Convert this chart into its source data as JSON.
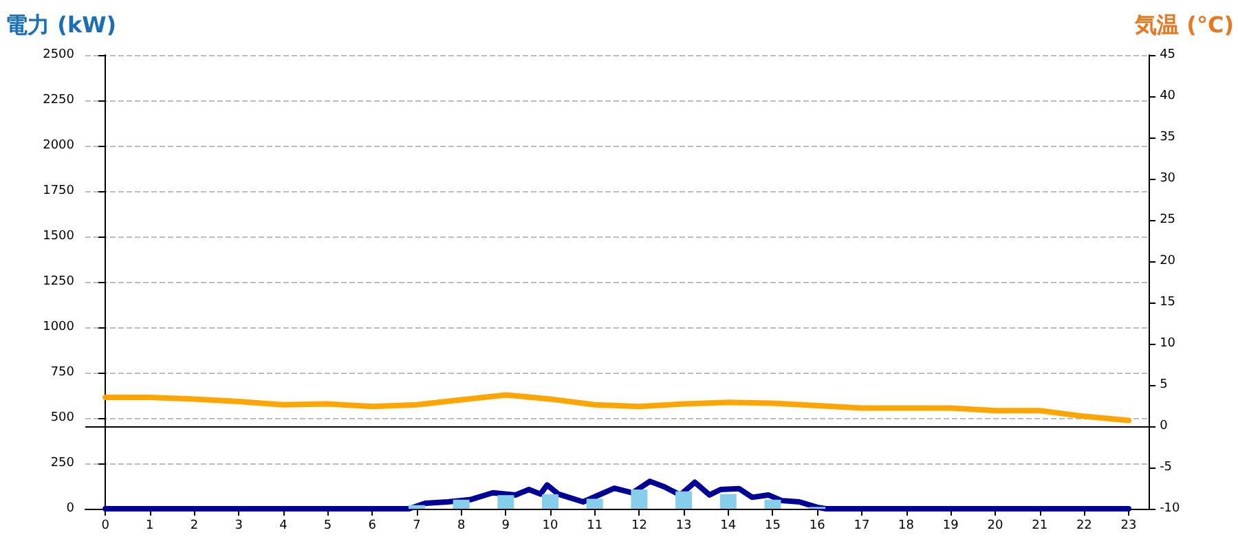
{
  "chart_data": {
    "type": "bar",
    "ylabel": "電力 (kW)",
    "y2label": "気温 (°C)",
    "xlim": [
      -0.45,
      23.45
    ],
    "xticks": [
      0,
      1,
      2,
      3,
      4,
      5,
      6,
      7,
      8,
      9,
      10,
      11,
      12,
      13,
      14,
      15,
      16,
      17,
      18,
      19,
      20,
      21,
      22,
      23
    ],
    "ylim": [
      0,
      2500
    ],
    "yticks": [
      0,
      250,
      500,
      750,
      1000,
      1250,
      1500,
      1750,
      2000,
      2250,
      2500
    ],
    "y2lim": [
      -10,
      45
    ],
    "y2ticks": [
      -10,
      -5,
      0,
      5,
      10,
      15,
      20,
      25,
      30,
      35,
      40,
      45
    ],
    "grid": "y",
    "ref_lines": [
      {
        "axis": "y2",
        "value": 0,
        "color": "#000000",
        "line_style": "solid"
      }
    ],
    "series": [
      {
        "color": "#87ceeb",
        "x": [
          0,
          1,
          2,
          3,
          4,
          5,
          6,
          7,
          8,
          9,
          10,
          11,
          12,
          13,
          14,
          15,
          16,
          17,
          18,
          19,
          20,
          21,
          22,
          23
        ],
        "values": [
          0,
          0,
          0,
          0,
          0,
          0,
          0,
          20,
          50,
          75,
          80,
          55,
          106,
          96,
          81,
          50,
          10,
          0,
          0,
          0,
          0,
          0,
          0,
          0
        ]
      },
      {
        "type": "line",
        "color": "#000099",
        "marker": "none",
        "line_style": "solid",
        "x": [
          0,
          6.83,
          7.19,
          7.7,
          8.2,
          8.71,
          9.22,
          9.52,
          9.78,
          9.93,
          10.18,
          10.74,
          11.04,
          11.44,
          11.85,
          12.24,
          12.56,
          12.92,
          13.25,
          13.58,
          13.83,
          14.24,
          14.54,
          14.9,
          15.2,
          15.6,
          16.0,
          16.2,
          23
        ],
        "values": [
          0,
          0,
          30,
          38,
          50,
          88,
          76,
          106,
          81,
          131,
          81,
          38,
          70,
          113,
          88,
          151,
          121,
          76,
          146,
          76,
          106,
          111,
          63,
          76,
          45,
          38,
          8,
          0,
          0
        ]
      },
      {
        "type": "line",
        "axis": "y2",
        "color": "#ffa500",
        "marker": "none",
        "line_style": "solid",
        "x": [
          0,
          1,
          2,
          3,
          4,
          5,
          6,
          7,
          8,
          9,
          10,
          11,
          12,
          13,
          14,
          15,
          16,
          17,
          18,
          19,
          20,
          21,
          22,
          23
        ],
        "values": [
          3.5,
          3.5,
          3.3,
          3.0,
          2.6,
          2.7,
          2.4,
          2.6,
          3.2,
          3.8,
          3.3,
          2.6,
          2.4,
          2.7,
          2.9,
          2.8,
          2.5,
          2.2,
          2.2,
          2.2,
          1.9,
          1.9,
          1.2,
          0.7
        ]
      }
    ]
  }
}
